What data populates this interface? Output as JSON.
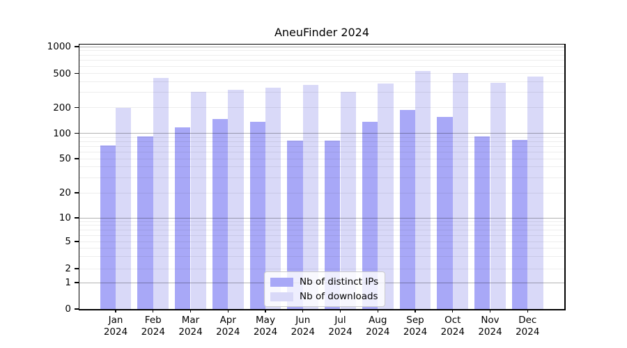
{
  "title": "AneuFinder 2024",
  "chart_data": {
    "type": "bar",
    "title": "AneuFinder 2024",
    "categories": [
      "Jan 2024",
      "Feb 2024",
      "Mar 2024",
      "Apr 2024",
      "May 2024",
      "Jun 2024",
      "Jul 2024",
      "Aug 2024",
      "Sep 2024",
      "Oct 2024",
      "Nov 2024",
      "Dec 2024"
    ],
    "series": [
      {
        "name": "Nb of distinct IPs",
        "color": "#a8a8f7",
        "values": [
          72,
          91,
          117,
          147,
          137,
          82,
          82,
          136,
          188,
          156,
          92,
          83
        ]
      },
      {
        "name": "Nb of downloads",
        "color": "#d9d9f8",
        "values": [
          200,
          445,
          305,
          322,
          340,
          370,
          303,
          380,
          530,
          505,
          390,
          458
        ]
      }
    ],
    "yticks": [
      0,
      1,
      2,
      5,
      10,
      20,
      50,
      100,
      200,
      500,
      1000
    ],
    "ylim": [
      0,
      1000
    ],
    "yscale": "asinh-log",
    "grid": "horizontal major+minor",
    "legend_position": "lower center"
  },
  "legend": {
    "items": [
      {
        "label": "Nb of distinct IPs",
        "color": "#a8a8f7"
      },
      {
        "label": "Nb of downloads",
        "color": "#d9d9f8"
      }
    ]
  },
  "colors": {
    "distinct_ips": "#a8a8f7",
    "downloads": "#d9d9f8",
    "major_grid": "rgba(0,0,0,0.30)",
    "minor_grid": "rgba(0,0,0,0.07)"
  }
}
